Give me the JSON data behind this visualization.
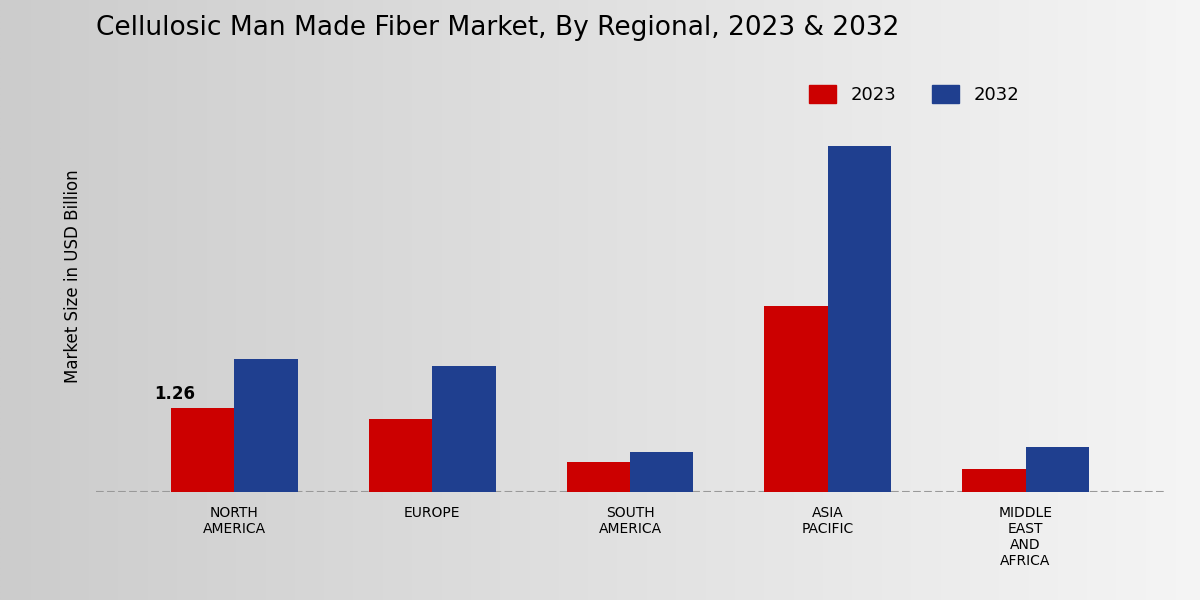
{
  "title": "Cellulosic Man Made Fiber Market, By Regional, 2023 & 2032",
  "ylabel": "Market Size in USD Billion",
  "categories": [
    "NORTH\nAMERICA",
    "EUROPE",
    "SOUTH\nAMERICA",
    "ASIA\nPACIFIC",
    "MIDDLE\nEAST\nAND\nAFRICA"
  ],
  "values_2023": [
    1.26,
    1.1,
    0.45,
    2.8,
    0.35
  ],
  "values_2032": [
    2.0,
    1.9,
    0.6,
    5.2,
    0.68
  ],
  "color_2023": "#cc0000",
  "color_2032": "#1f3f8f",
  "annotation_text": "1.26",
  "annotation_index": 0,
  "bar_width": 0.32,
  "ylim": [
    0,
    6.5
  ],
  "bg_left_color": "#d0d0d0",
  "bg_right_color": "#f5f5f5",
  "legend_labels": [
    "2023",
    "2032"
  ],
  "title_fontsize": 19,
  "axis_label_fontsize": 12,
  "tick_fontsize": 10,
  "legend_fontsize": 13,
  "dashed_line_color": "#999999",
  "bottom_bar_color": "#cc0000"
}
